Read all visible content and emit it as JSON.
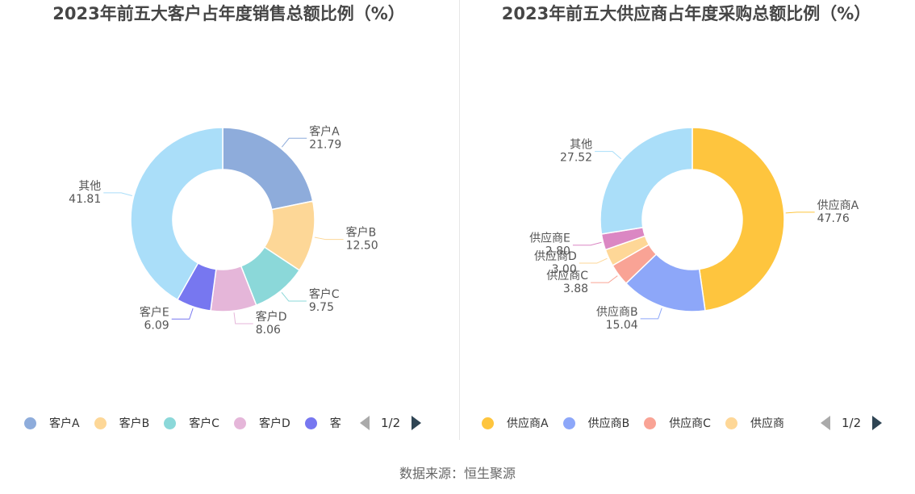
{
  "charts": [
    {
      "title": "2023年前五大客户占年度销售总额比例（%）",
      "legend_page": "1/2",
      "legend_items": [
        "客户A",
        "客户B",
        "客户C",
        "客户D",
        "客"
      ]
    },
    {
      "title": "2023年前五大供应商占年度采购总额比例（%）",
      "legend_page": "1/2",
      "legend_items": [
        "供应商A",
        "供应商B",
        "供应商C",
        "供应商"
      ]
    }
  ],
  "source": "数据来源：恒生聚源",
  "chart_data": [
    {
      "type": "pie",
      "style": "donut",
      "title": "2023年前五大客户占年度销售总额比例（%）",
      "labels": [
        "客户A",
        "客户B",
        "客户C",
        "客户D",
        "客户E",
        "其他"
      ],
      "values": [
        21.79,
        12.5,
        9.75,
        8.06,
        6.09,
        41.81
      ],
      "value_labels": [
        "21.79",
        "12.50",
        "9.75",
        "8.06",
        "6.09",
        "41.81"
      ],
      "colors": [
        "#8eacdb",
        "#fdd797",
        "#8bd8d9",
        "#e5b6d9",
        "#7777f0",
        "#aadef9"
      ],
      "legend": "bottom"
    },
    {
      "type": "pie",
      "style": "donut",
      "title": "2023年前五大供应商占年度采购总额比例（%）",
      "labels": [
        "供应商A",
        "供应商B",
        "供应商C",
        "供应商D",
        "供应商E",
        "其他"
      ],
      "values": [
        47.76,
        15.04,
        3.88,
        3.0,
        2.8,
        27.52
      ],
      "value_labels": [
        "47.76",
        "15.04",
        "3.88",
        "3.00",
        "2.80",
        "27.52"
      ],
      "colors": [
        "#fec53e",
        "#8da7f9",
        "#f9a395",
        "#fed797",
        "#db87c3",
        "#aadef9"
      ],
      "legend": "bottom"
    }
  ]
}
